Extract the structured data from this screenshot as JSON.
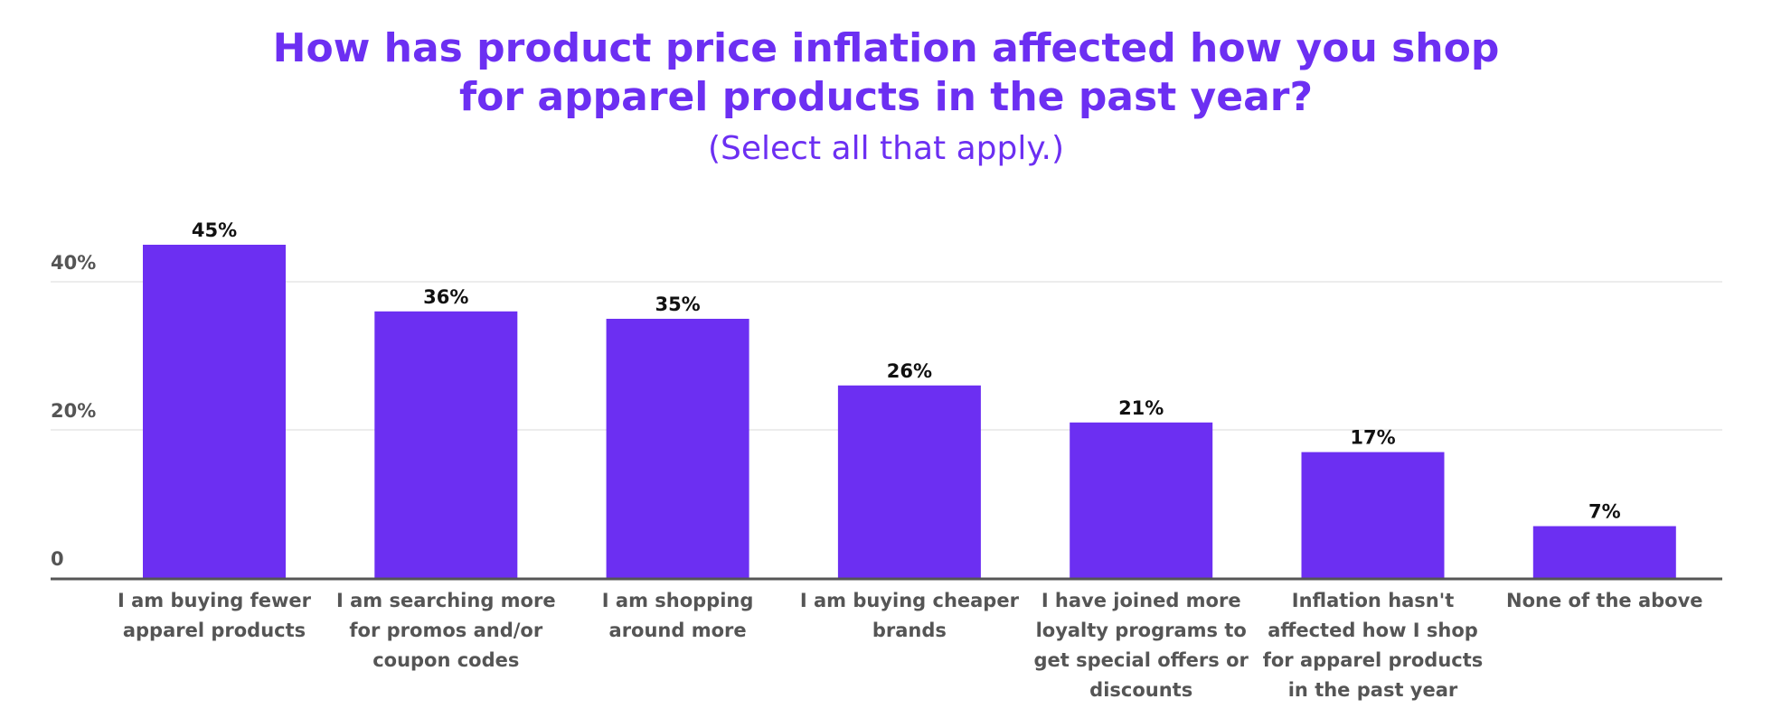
{
  "chart_data": {
    "type": "bar",
    "title_lines": [
      "How has product price inflation affected how you shop",
      "for apparel products in the past year?"
    ],
    "subtitle": "(Select all that apply.)",
    "categories": [
      [
        "I am buying fewer",
        "apparel products"
      ],
      [
        "I am searching more",
        "for promos and/or",
        "coupon codes"
      ],
      [
        "I am shopping",
        "around more"
      ],
      [
        "I am buying cheaper",
        "brands"
      ],
      [
        "I have joined more",
        "loyalty programs to",
        "get special offers or",
        "discounts"
      ],
      [
        "Inflation hasn't",
        "affected how I shop",
        "for apparel products",
        "in the past year"
      ],
      [
        "None of the above"
      ]
    ],
    "values": [
      45,
      36,
      35,
      26,
      21,
      17,
      7
    ],
    "value_labels": [
      "45%",
      "36%",
      "35%",
      "26%",
      "21%",
      "17%",
      "7%"
    ],
    "ylim": [
      0,
      45
    ],
    "yticks": [
      0,
      20,
      40
    ],
    "ytick_labels": [
      "0",
      "20%",
      "40%"
    ],
    "grid": true,
    "bar_color": "#6c2ff2",
    "title_color": "#6c2ff2"
  }
}
